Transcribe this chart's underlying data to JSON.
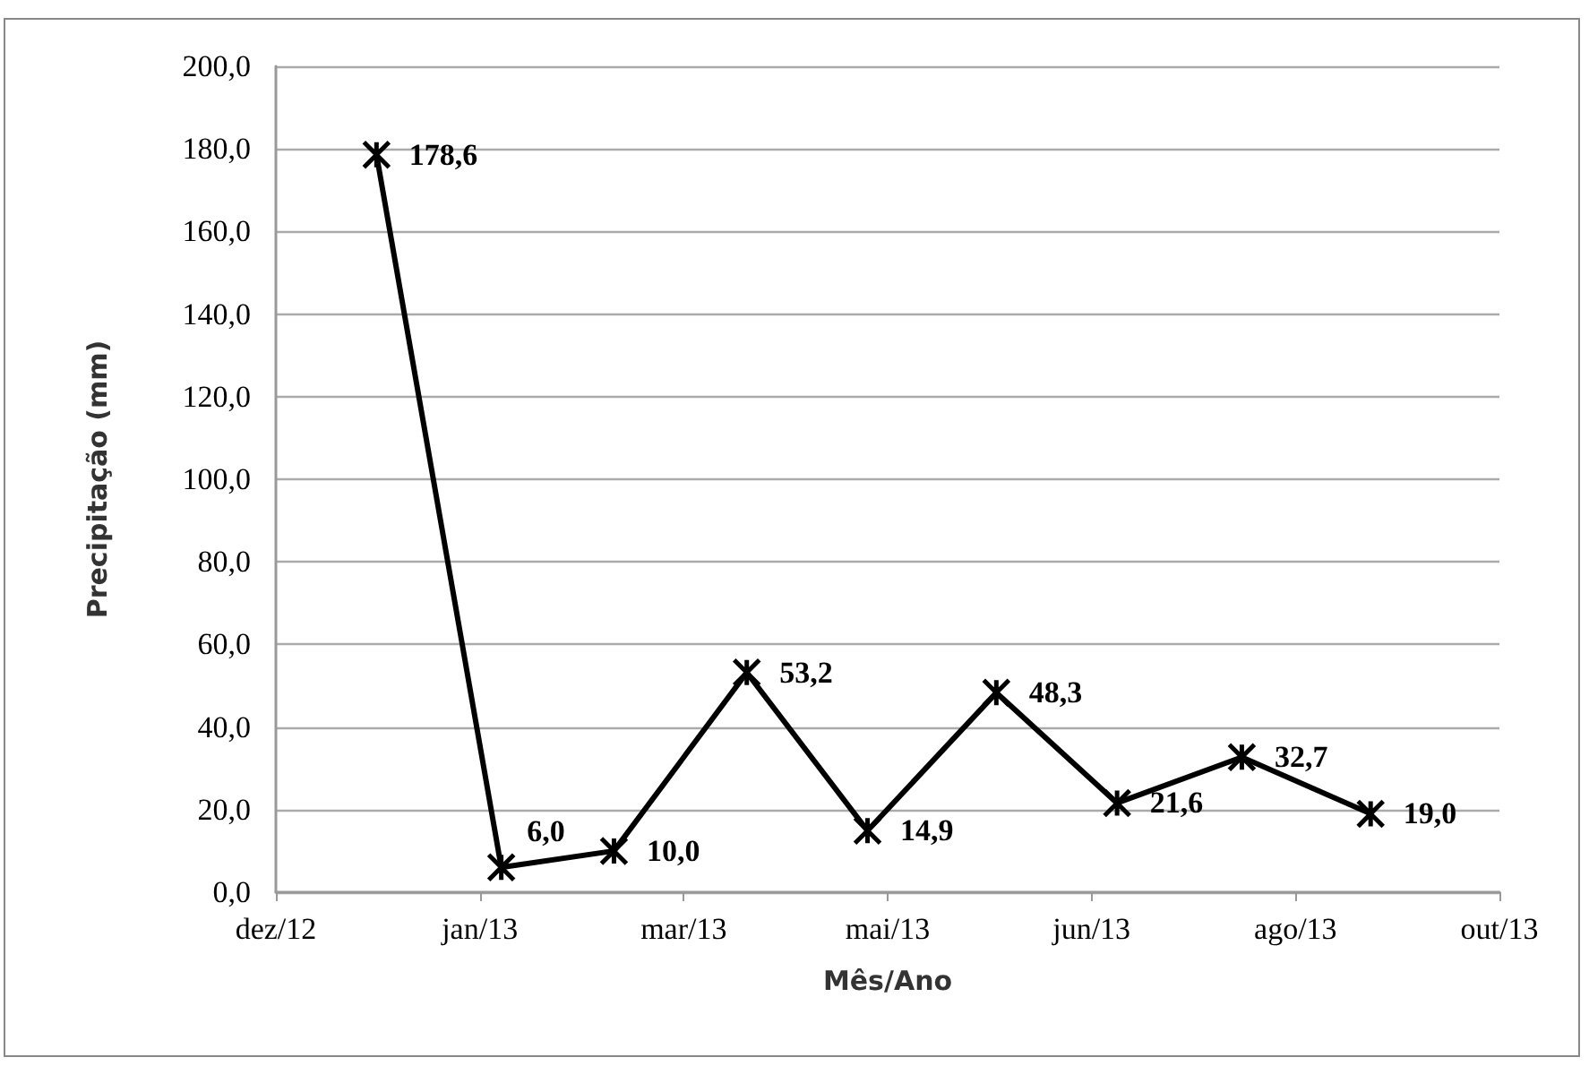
{
  "chart_data": {
    "type": "line",
    "xlabel": "Mês/Ano",
    "ylabel": "Precipitação (mm)",
    "x": [
      "2012-12-26",
      "2013-01-26",
      "2013-02-23",
      "2013-03-28",
      "2013-04-27",
      "2013-05-29",
      "2013-06-28",
      "2013-07-29",
      "2013-08-30"
    ],
    "series": [
      {
        "color": "#000000",
        "values": [
          178.6,
          6.0,
          10.0,
          53.2,
          14.9,
          48.3,
          21.6,
          32.7,
          19.0
        ],
        "value_labels": [
          "178,6",
          "6,0",
          "10,0",
          "53,2",
          "14,9",
          "48,3",
          "21,6",
          "32,7",
          "19,0"
        ]
      }
    ],
    "xlim": [
      "2012-12-01",
      "2013-10-01"
    ],
    "xticks": [
      {
        "value": "2012-12-01",
        "label": "dez/12"
      },
      {
        "value": "2013-01-20T16:00",
        "label": "jan/13"
      },
      {
        "value": "2013-03-12T08:00",
        "label": "mar/13"
      },
      {
        "value": "2013-05-02",
        "label": "mai/13"
      },
      {
        "value": "2013-06-21T16:00",
        "label": "jun/13"
      },
      {
        "value": "2013-08-11T08:00",
        "label": "ago/13"
      },
      {
        "value": "2013-10-01",
        "label": "out/13"
      }
    ],
    "ylim": [
      0,
      200
    ],
    "yticks": [
      {
        "value": 0,
        "label": "0,0"
      },
      {
        "value": 20,
        "label": "20,0"
      },
      {
        "value": 40,
        "label": "40,0"
      },
      {
        "value": 60,
        "label": "60,0"
      },
      {
        "value": 80,
        "label": "80,0"
      },
      {
        "value": 100,
        "label": "100,0"
      },
      {
        "value": 120,
        "label": "120,0"
      },
      {
        "value": 140,
        "label": "140,0"
      },
      {
        "value": 160,
        "label": "160,0"
      },
      {
        "value": 180,
        "label": "180,0"
      },
      {
        "value": 200,
        "label": "200,0"
      }
    ],
    "grid": "y",
    "marker": "cross",
    "line_style": "solid"
  }
}
